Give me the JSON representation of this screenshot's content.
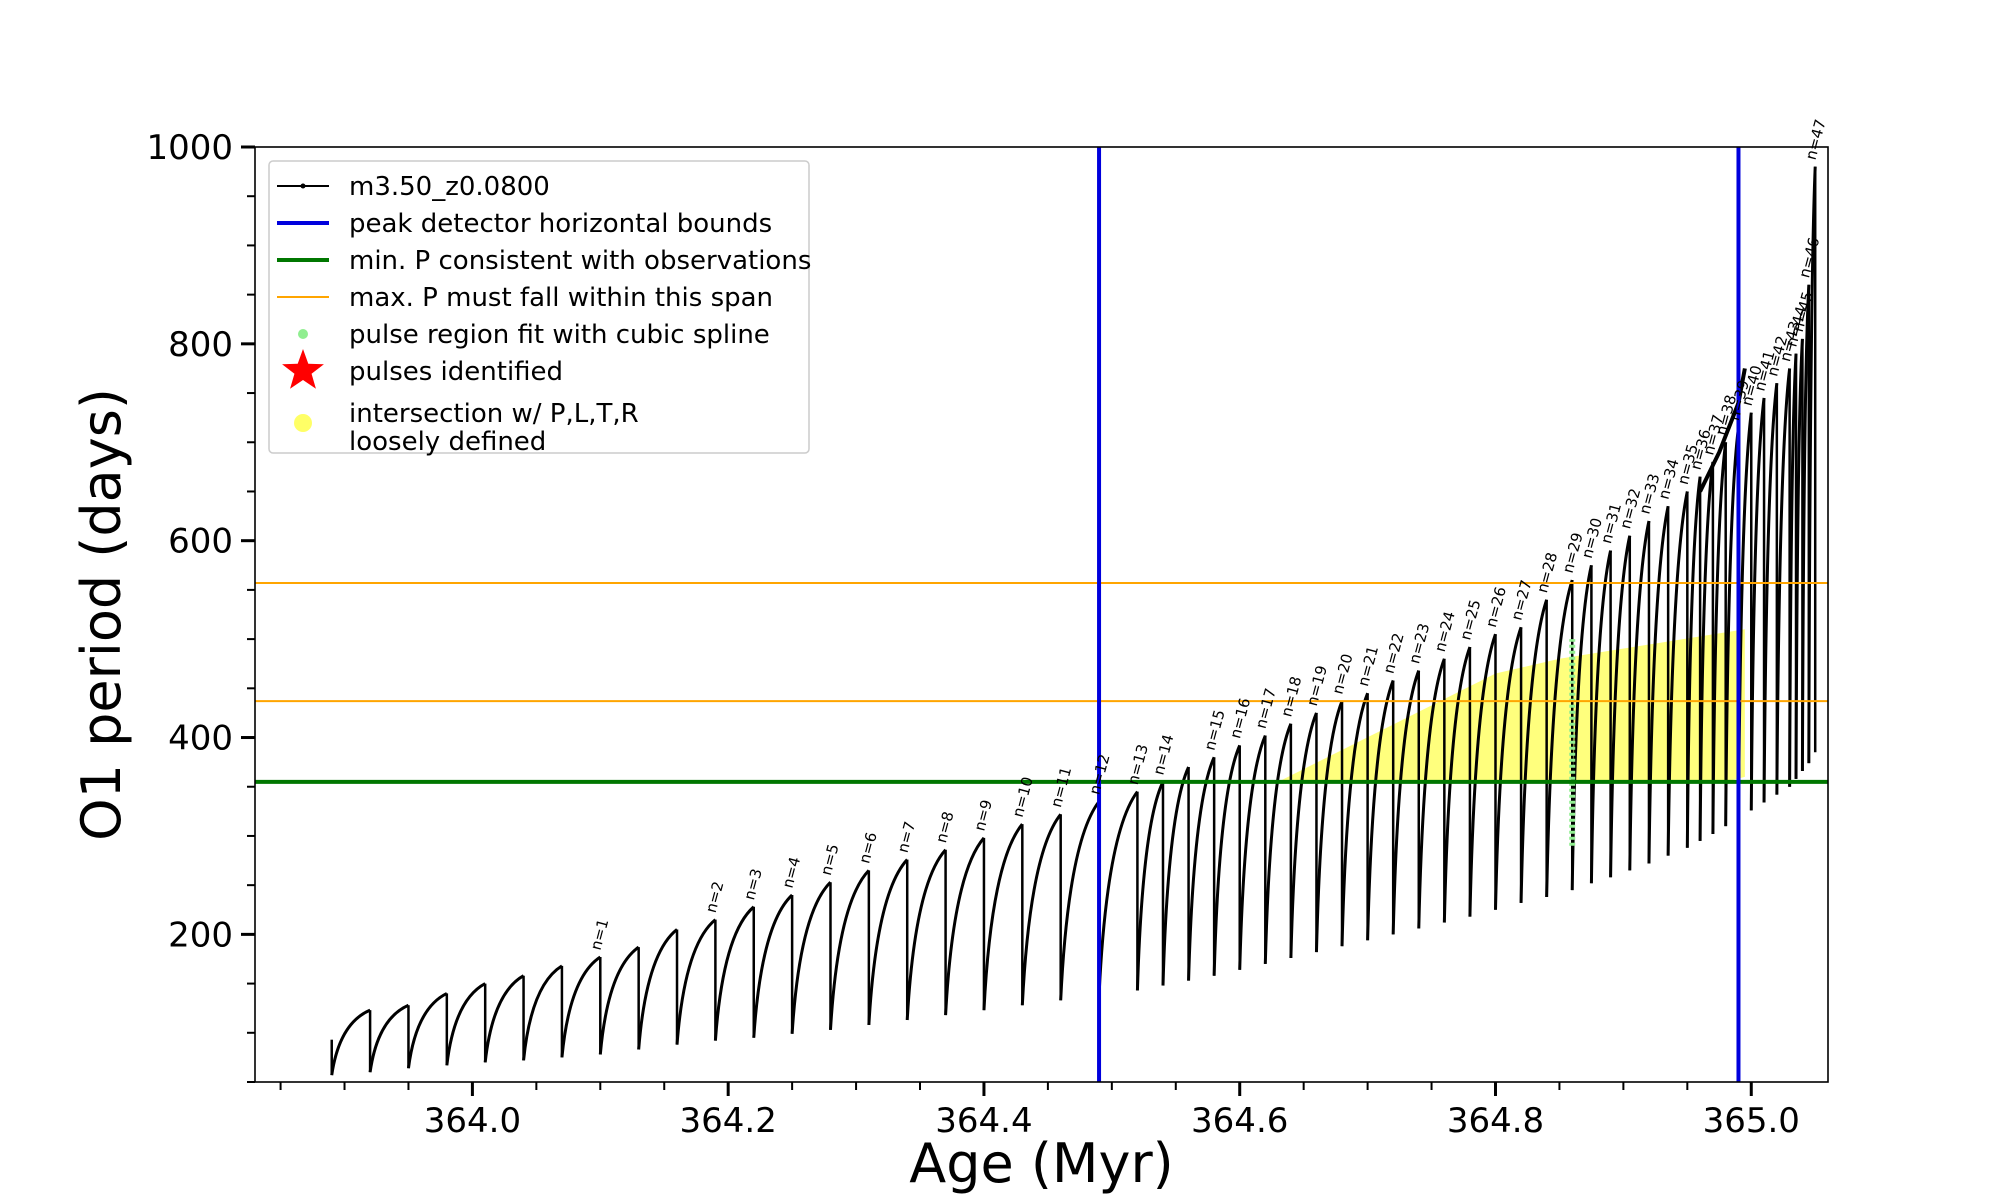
{
  "chart_data": {
    "type": "line",
    "xlabel": "Age (Myr)",
    "ylabel": "O1 period (days)",
    "xlim": [
      363.83,
      365.06
    ],
    "ylim": [
      50,
      1000
    ],
    "xticks": [
      364.0,
      364.2,
      364.4,
      364.6,
      364.8,
      365.0
    ],
    "xtick_labels": [
      "364.0",
      "364.2",
      "364.4",
      "364.6",
      "364.8",
      "365.0"
    ],
    "yticks": [
      200,
      400,
      600,
      800,
      1000
    ],
    "ytick_labels": [
      "200",
      "400",
      "600",
      "800",
      "1000"
    ],
    "legend_position": "top-left",
    "legend": [
      {
        "label": "m3.50_z0.0800",
        "kind": "line-dot",
        "color": "#000000"
      },
      {
        "label": "peak detector horizontal bounds",
        "kind": "line",
        "color": "#0000dd"
      },
      {
        "label": "min. P consistent with observations",
        "kind": "line",
        "color": "#007700"
      },
      {
        "label": "max. P must fall within this span",
        "kind": "line",
        "color": "#ffa500"
      },
      {
        "label": "pulse region fit with cubic spline",
        "kind": "dot",
        "color": "#90ee90"
      },
      {
        "label": "pulses identified",
        "kind": "star",
        "color": "#ff0000"
      },
      {
        "label": "intersection w/ P,L,T,R\nloosely defined",
        "kind": "dot-big",
        "color": "#ffff66"
      }
    ],
    "vertical_lines": {
      "color": "#0000dd",
      "x": [
        364.49,
        364.99
      ]
    },
    "min_period_line": {
      "color": "#007700",
      "y": 355
    },
    "max_period_span": {
      "color": "#ffa500",
      "y": [
        437,
        557
      ]
    },
    "series": {
      "name": "m3.50_z0.0800",
      "color": "#000000",
      "pulses": [
        {
          "x": 363.89,
          "peak": 93,
          "min": 57,
          "label": ""
        },
        {
          "x": 363.92,
          "peak": 123,
          "min": 60,
          "label": ""
        },
        {
          "x": 363.95,
          "peak": 128,
          "min": 64,
          "label": ""
        },
        {
          "x": 363.98,
          "peak": 140,
          "min": 67,
          "label": ""
        },
        {
          "x": 364.01,
          "peak": 150,
          "min": 70,
          "label": ""
        },
        {
          "x": 364.04,
          "peak": 158,
          "min": 72,
          "label": ""
        },
        {
          "x": 364.07,
          "peak": 168,
          "min": 75,
          "label": ""
        },
        {
          "x": 364.1,
          "peak": 177,
          "min": 78,
          "label": "n=1"
        },
        {
          "x": 364.13,
          "peak": 187,
          "min": 83,
          "label": ""
        },
        {
          "x": 364.16,
          "peak": 205,
          "min": 88,
          "label": ""
        },
        {
          "x": 364.19,
          "peak": 215,
          "min": 92,
          "label": "n=2"
        },
        {
          "x": 364.22,
          "peak": 228,
          "min": 95,
          "label": "n=3"
        },
        {
          "x": 364.25,
          "peak": 240,
          "min": 99,
          "label": "n=4"
        },
        {
          "x": 364.28,
          "peak": 253,
          "min": 103,
          "label": "n=5"
        },
        {
          "x": 364.31,
          "peak": 265,
          "min": 108,
          "label": "n=6"
        },
        {
          "x": 364.34,
          "peak": 276,
          "min": 113,
          "label": "n=7"
        },
        {
          "x": 364.37,
          "peak": 286,
          "min": 118,
          "label": "n=8"
        },
        {
          "x": 364.4,
          "peak": 298,
          "min": 123,
          "label": "n=9"
        },
        {
          "x": 364.43,
          "peak": 312,
          "min": 128,
          "label": "n=10"
        },
        {
          "x": 364.46,
          "peak": 322,
          "min": 133,
          "label": "n=11"
        },
        {
          "x": 364.49,
          "peak": 335,
          "min": 138,
          "label": "n=12"
        },
        {
          "x": 364.52,
          "peak": 345,
          "min": 143,
          "label": "n=13"
        },
        {
          "x": 364.54,
          "peak": 355,
          "min": 148,
          "label": "n=14"
        },
        {
          "x": 364.56,
          "peak": 370,
          "min": 153,
          "label": ""
        },
        {
          "x": 364.58,
          "peak": 380,
          "min": 158,
          "label": "n=15"
        },
        {
          "x": 364.6,
          "peak": 392,
          "min": 164,
          "label": "n=16"
        },
        {
          "x": 364.62,
          "peak": 402,
          "min": 170,
          "label": "n=17"
        },
        {
          "x": 364.64,
          "peak": 414,
          "min": 176,
          "label": "n=18"
        },
        {
          "x": 364.66,
          "peak": 425,
          "min": 182,
          "label": "n=19"
        },
        {
          "x": 364.68,
          "peak": 437,
          "min": 188,
          "label": "n=20"
        },
        {
          "x": 364.7,
          "peak": 445,
          "min": 194,
          "label": "n=21"
        },
        {
          "x": 364.72,
          "peak": 458,
          "min": 200,
          "label": "n=22"
        },
        {
          "x": 364.74,
          "peak": 468,
          "min": 206,
          "label": "n=23"
        },
        {
          "x": 364.76,
          "peak": 480,
          "min": 212,
          "label": "n=24"
        },
        {
          "x": 364.78,
          "peak": 492,
          "min": 218,
          "label": "n=25"
        },
        {
          "x": 364.8,
          "peak": 505,
          "min": 225,
          "label": "n=26"
        },
        {
          "x": 364.82,
          "peak": 512,
          "min": 232,
          "label": "n=27"
        },
        {
          "x": 364.84,
          "peak": 540,
          "min": 238,
          "label": "n=28"
        },
        {
          "x": 364.86,
          "peak": 560,
          "min": 245,
          "label": "n=29"
        },
        {
          "x": 364.875,
          "peak": 575,
          "min": 252,
          "label": "n=30"
        },
        {
          "x": 364.89,
          "peak": 590,
          "min": 258,
          "label": "n=31"
        },
        {
          "x": 364.905,
          "peak": 605,
          "min": 265,
          "label": "n=32"
        },
        {
          "x": 364.92,
          "peak": 620,
          "min": 272,
          "label": "n=33"
        },
        {
          "x": 364.935,
          "peak": 635,
          "min": 280,
          "label": "n=34"
        },
        {
          "x": 364.95,
          "peak": 650,
          "min": 288,
          "label": "n=35"
        },
        {
          "x": 364.96,
          "peak": 665,
          "min": 295,
          "label": "n=36"
        },
        {
          "x": 364.97,
          "peak": 680,
          "min": 302,
          "label": "n=37"
        },
        {
          "x": 364.98,
          "peak": 700,
          "min": 310,
          "label": "n=38"
        },
        {
          "x": 364.99,
          "peak": 715,
          "min": 318,
          "label": "n=39"
        },
        {
          "x": 365.0,
          "peak": 730,
          "min": 326,
          "label": "n=40"
        },
        {
          "x": 365.01,
          "peak": 745,
          "min": 334,
          "label": "n=41"
        },
        {
          "x": 365.02,
          "peak": 760,
          "min": 342,
          "label": "n=42"
        },
        {
          "x": 365.03,
          "peak": 775,
          "min": 350,
          "label": "n=43"
        },
        {
          "x": 365.035,
          "peak": 790,
          "min": 358,
          "label": "n=44"
        },
        {
          "x": 365.04,
          "peak": 805,
          "min": 366,
          "label": "n=45"
        },
        {
          "x": 365.045,
          "peak": 860,
          "min": 374,
          "label": "n=46"
        },
        {
          "x": 365.05,
          "peak": 980,
          "min": 385,
          "label": "n=47"
        }
      ],
      "final_rise": {
        "x": [
          364.96,
          364.975,
          364.99,
          364.995
        ],
        "y": [
          650,
          690,
          740,
          775
        ]
      }
    }
  }
}
